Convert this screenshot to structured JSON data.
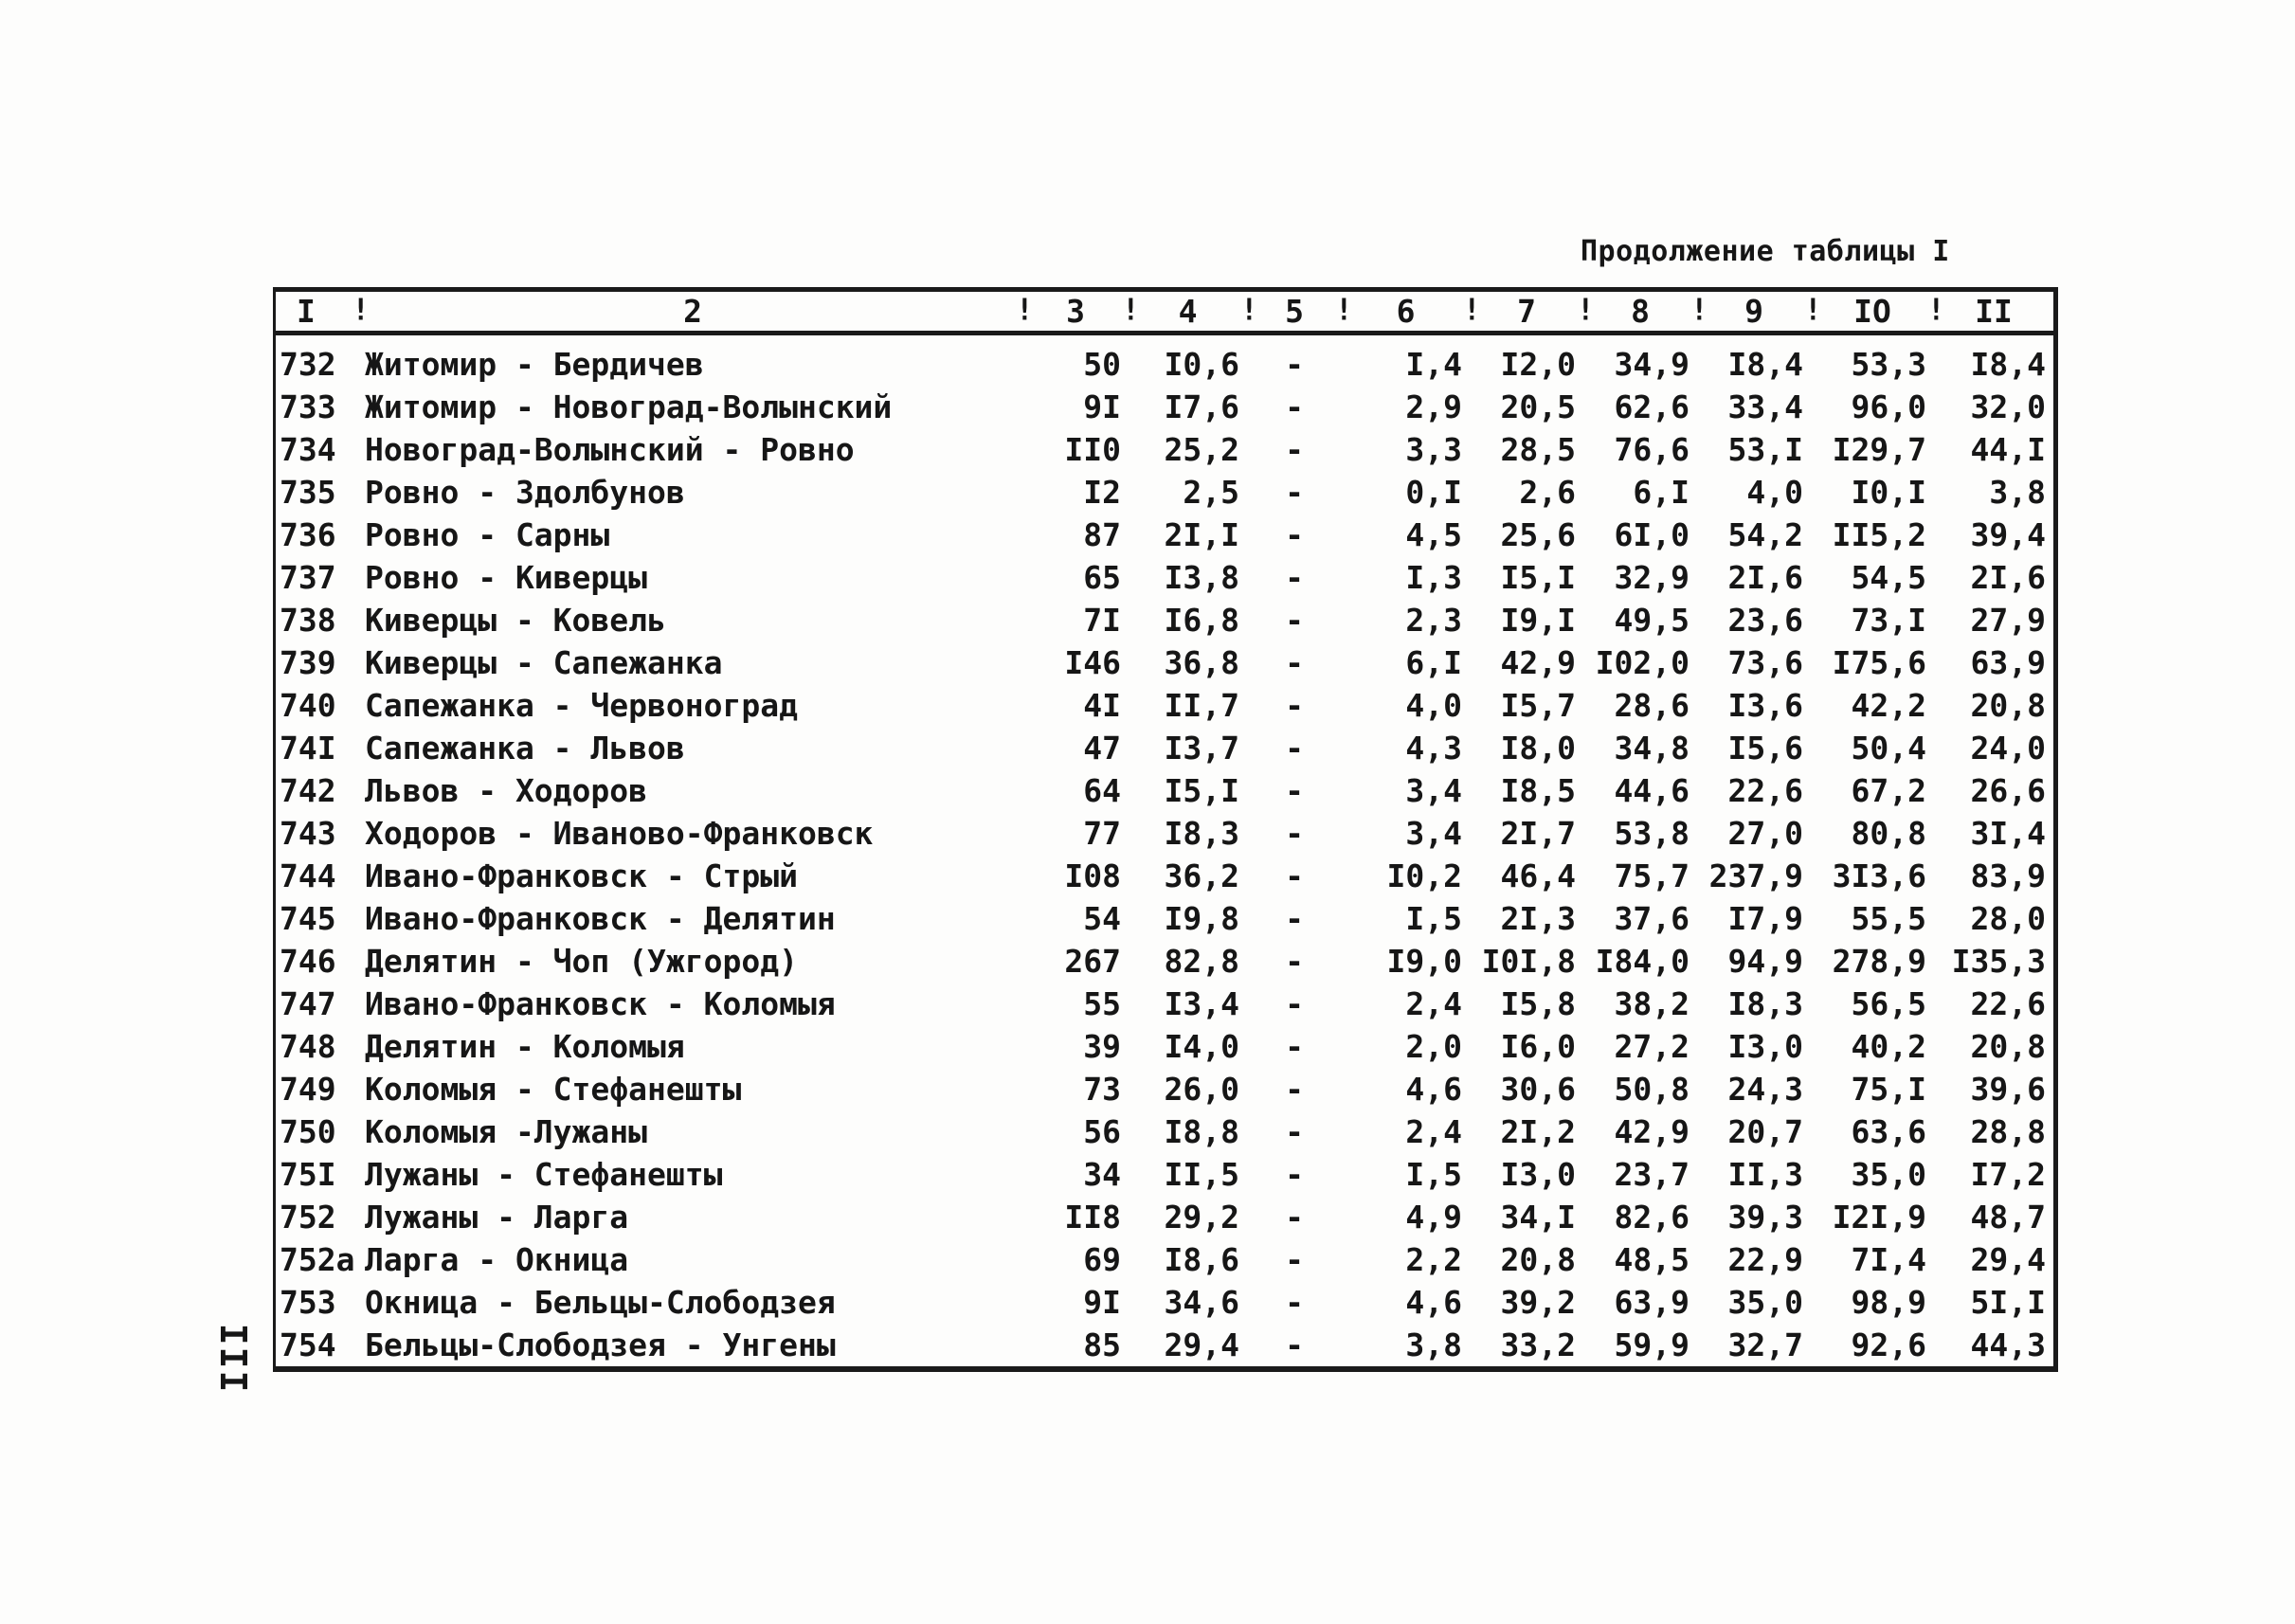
{
  "page": {
    "title": "Продолжение таблицы I",
    "side_page_number": "III"
  },
  "table": {
    "header_separator": "!",
    "column_headers": [
      "I",
      "2",
      "3",
      "4",
      "5",
      "6",
      "7",
      "8",
      "9",
      "IO",
      "II"
    ],
    "rows": [
      {
        "num": "732",
        "route": "Житомир - Бердичев",
        "values": [
          "50",
          "I0,6",
          "-",
          "I,4",
          "I2,0",
          "34,9",
          "I8,4",
          "53,3",
          "I8,4"
        ]
      },
      {
        "num": "733",
        "route": "Житомир - Новоград-Волынский",
        "values": [
          "9I",
          "I7,6",
          "-",
          "2,9",
          "20,5",
          "62,6",
          "33,4",
          "96,0",
          "32,0"
        ]
      },
      {
        "num": "734",
        "route": "Новоград-Волынский - Ровно",
        "values": [
          "II0",
          "25,2",
          "-",
          "3,3",
          "28,5",
          "76,6",
          "53,I",
          "I29,7",
          "44,I"
        ]
      },
      {
        "num": "735",
        "route": "Ровно - Здолбунов",
        "values": [
          "I2",
          "2,5",
          "-",
          "0,I",
          "2,6",
          "6,I",
          "4,0",
          "I0,I",
          "3,8"
        ]
      },
      {
        "num": "736",
        "route": "Ровно - Сарны",
        "values": [
          "87",
          "2I,I",
          "-",
          "4,5",
          "25,6",
          "6I,0",
          "54,2",
          "II5,2",
          "39,4"
        ]
      },
      {
        "num": "737",
        "route": "Ровно - Киверцы",
        "values": [
          "65",
          "I3,8",
          "-",
          "I,3",
          "I5,I",
          "32,9",
          "2I,6",
          "54,5",
          "2I,6"
        ]
      },
      {
        "num": "738",
        "route": "Киверцы - Ковель",
        "values": [
          "7I",
          "I6,8",
          "-",
          "2,3",
          "I9,I",
          "49,5",
          "23,6",
          "73,I",
          "27,9"
        ]
      },
      {
        "num": "739",
        "route": "Киверцы - Сапежанка",
        "values": [
          "I46",
          "36,8",
          "-",
          "6,I",
          "42,9",
          "I02,0",
          "73,6",
          "I75,6",
          "63,9"
        ]
      },
      {
        "num": "740",
        "route": "Сапежанка - Червоноград",
        "values": [
          "4I",
          "II,7",
          "-",
          "4,0",
          "I5,7",
          "28,6",
          "I3,6",
          "42,2",
          "20,8"
        ]
      },
      {
        "num": "74I",
        "route": "Сапежанка - Львов",
        "values": [
          "47",
          "I3,7",
          "-",
          "4,3",
          "I8,0",
          "34,8",
          "I5,6",
          "50,4",
          "24,0"
        ]
      },
      {
        "num": "742",
        "route": "Львов - Ходоров",
        "values": [
          "64",
          "I5,I",
          "-",
          "3,4",
          "I8,5",
          "44,6",
          "22,6",
          "67,2",
          "26,6"
        ]
      },
      {
        "num": "743",
        "route": "Ходоров - Иваново-Франковск",
        "values": [
          "77",
          "I8,3",
          "-",
          "3,4",
          "2I,7",
          "53,8",
          "27,0",
          "80,8",
          "3I,4"
        ]
      },
      {
        "num": "744",
        "route": "Ивано-Франковск - Стрый",
        "values": [
          "I08",
          "36,2",
          "-",
          "I0,2",
          "46,4",
          "75,7",
          "237,9",
          "3I3,6",
          "83,9"
        ]
      },
      {
        "num": "745",
        "route": "Ивано-Франковск - Делятин",
        "values": [
          "54",
          "I9,8",
          "-",
          "I,5",
          "2I,3",
          "37,6",
          "I7,9",
          "55,5",
          "28,0"
        ]
      },
      {
        "num": "746",
        "route": "Делятин - Чоп (Ужгород)",
        "values": [
          "267",
          "82,8",
          "-",
          "I9,0",
          "I0I,8",
          "I84,0",
          "94,9",
          "278,9",
          "I35,3"
        ]
      },
      {
        "num": "747",
        "route": "Ивано-Франковск - Коломыя",
        "values": [
          "55",
          "I3,4",
          "-",
          "2,4",
          "I5,8",
          "38,2",
          "I8,3",
          "56,5",
          "22,6"
        ]
      },
      {
        "num": "748",
        "route": "Делятин - Коломыя",
        "values": [
          "39",
          "I4,0",
          "-",
          "2,0",
          "I6,0",
          "27,2",
          "I3,0",
          "40,2",
          "20,8"
        ]
      },
      {
        "num": "749",
        "route": "Коломыя - Стефанешты",
        "values": [
          "73",
          "26,0",
          "-",
          "4,6",
          "30,6",
          "50,8",
          "24,3",
          "75,I",
          "39,6"
        ]
      },
      {
        "num": "750",
        "route": "Коломыя -Лужаны",
        "values": [
          "56",
          "I8,8",
          "-",
          "2,4",
          "2I,2",
          "42,9",
          "20,7",
          "63,6",
          "28,8"
        ]
      },
      {
        "num": "75I",
        "route": "Лужаны - Стефанешты",
        "values": [
          "34",
          "II,5",
          "-",
          "I,5",
          "I3,0",
          "23,7",
          "II,3",
          "35,0",
          "I7,2"
        ]
      },
      {
        "num": "752",
        "route": "Лужаны - Ларга",
        "values": [
          "II8",
          "29,2",
          "-",
          "4,9",
          "34,I",
          "82,6",
          "39,3",
          "I2I,9",
          "48,7"
        ]
      },
      {
        "num": "752а",
        "route": "Ларга - Окница",
        "values": [
          "69",
          "I8,6",
          "-",
          "2,2",
          "20,8",
          "48,5",
          "22,9",
          "7I,4",
          "29,4"
        ]
      },
      {
        "num": "753",
        "route": "Окница - Бельцы-Слободзея",
        "values": [
          "9I",
          "34,6",
          "-",
          "4,6",
          "39,2",
          "63,9",
          "35,0",
          "98,9",
          "5I,I"
        ]
      },
      {
        "num": "754",
        "route": "Бельцы-Слободзея - Унгены",
        "values": [
          "85",
          "29,4",
          "-",
          "3,8",
          "33,2",
          "59,9",
          "32,7",
          "92,6",
          "44,3"
        ]
      }
    ]
  }
}
